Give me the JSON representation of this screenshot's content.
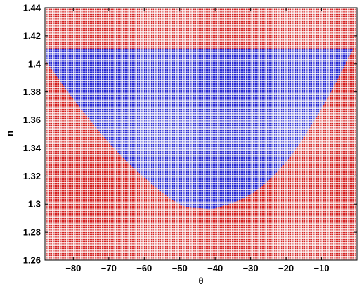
{
  "chart_data": {
    "type": "heatmap",
    "title": "",
    "xlabel": "θ",
    "ylabel": "n",
    "xlim": [
      -88,
      0
    ],
    "ylim": [
      1.26,
      1.44
    ],
    "xticks": [
      -80,
      -70,
      -60,
      -50,
      -40,
      -30,
      -20,
      -10
    ],
    "xtick_labels": [
      "−80",
      "−70",
      "−60",
      "−50",
      "−40",
      "−30",
      "−20",
      "−10"
    ],
    "yticks": [
      1.26,
      1.28,
      1.3,
      1.32,
      1.34,
      1.36,
      1.38,
      1.4,
      1.42,
      1.44
    ],
    "ytick_labels": [
      "1.26",
      "1.28",
      "1.3",
      "1.32",
      "1.34",
      "1.36",
      "1.38",
      "1.4",
      "1.42",
      "1.44"
    ],
    "grid": false,
    "regions": [
      {
        "color": "#d42020",
        "description": "outside region"
      },
      {
        "color": "#2a2ad2",
        "description": "inside region"
      }
    ],
    "region_boundary": {
      "upper_n": 1.411,
      "min_n": 1.297,
      "min_at_theta": -43.5,
      "theta_at_upper_left": -88,
      "theta_at_upper_right": -1,
      "curve_points": [
        [
          -88,
          1.403
        ],
        [
          -80,
          1.375
        ],
        [
          -70,
          1.344
        ],
        [
          -60,
          1.319
        ],
        [
          -50,
          1.3
        ],
        [
          -43.5,
          1.297
        ],
        [
          -40,
          1.297
        ],
        [
          -30,
          1.307
        ],
        [
          -20,
          1.33
        ],
        [
          -10,
          1.368
        ],
        [
          -1,
          1.411
        ]
      ]
    }
  }
}
